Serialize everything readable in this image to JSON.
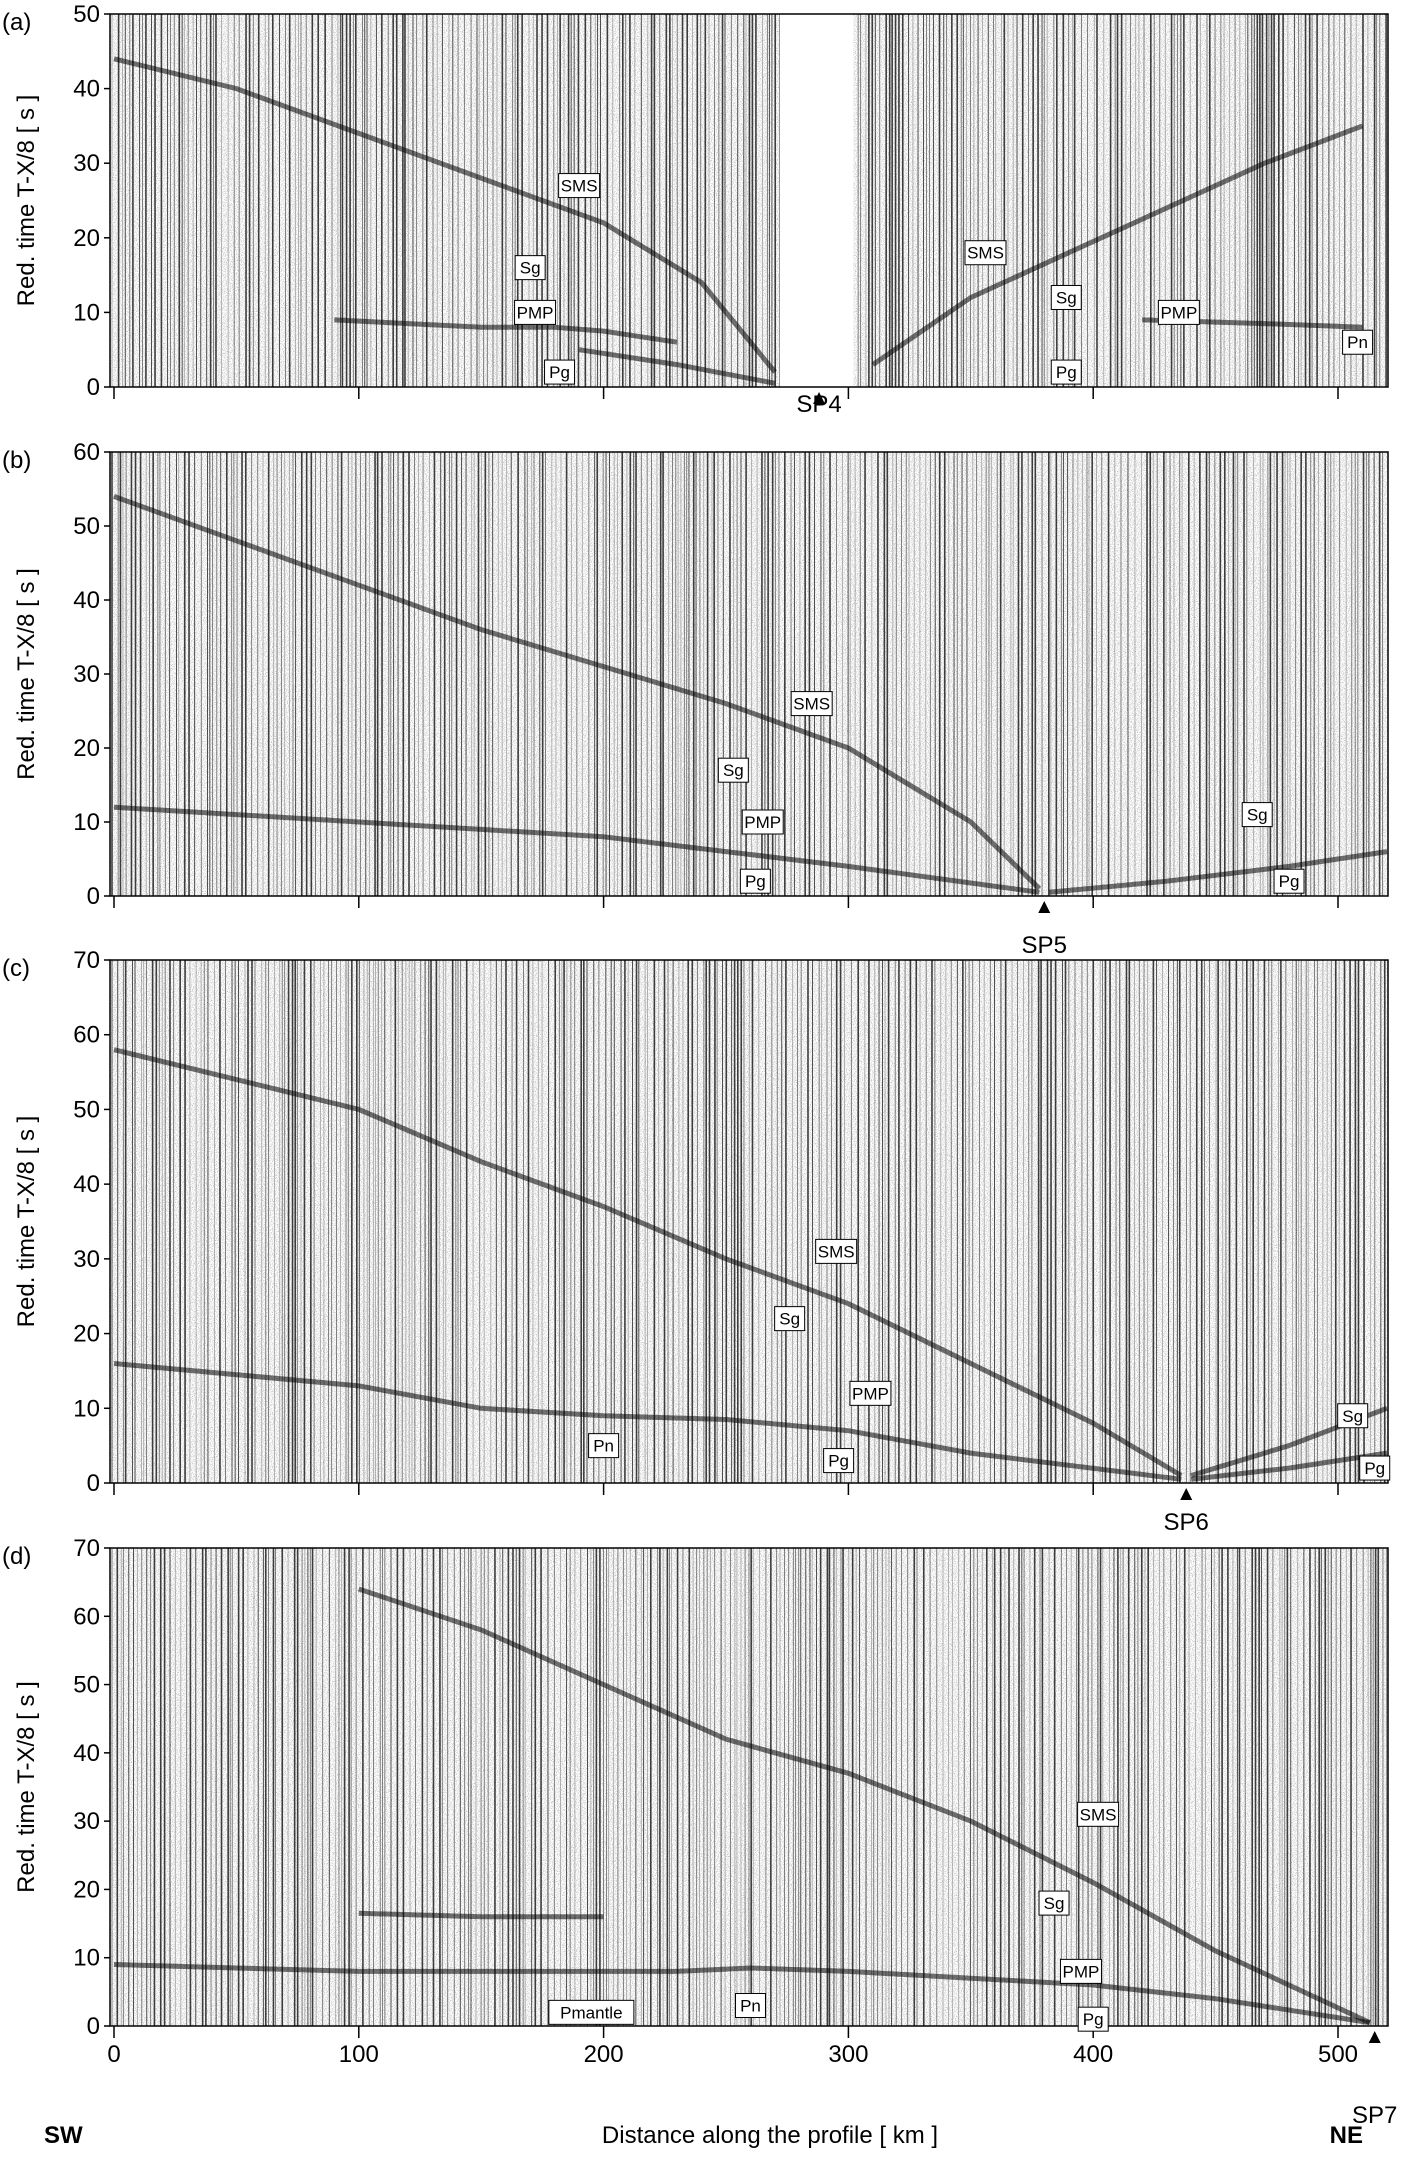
{
  "figure": {
    "xlabel": "Distance along the profile   [ km ]",
    "left_end": "SW",
    "right_end": "NE",
    "ylabel_prefix": "Red. time  T-X/8",
    "ylabel_unit": "[ s ]",
    "x_ticks": [
      0,
      100,
      200,
      300,
      400,
      500
    ],
    "xlim": [
      0,
      520
    ]
  },
  "chart_data": [
    {
      "type": "heatmap",
      "panel": "(a)",
      "xlim": [
        0,
        520
      ],
      "ylim": [
        0,
        50
      ],
      "y_ticks": [
        0,
        10,
        20,
        30,
        40,
        50
      ],
      "x_ticks": [
        0,
        100,
        200,
        300,
        400,
        500
      ],
      "shot": {
        "name": "SP4",
        "x": 288
      },
      "gap": [
        272,
        302
      ],
      "phases": [
        {
          "name": "SMS",
          "x": 190,
          "y": 27
        },
        {
          "name": "Sg",
          "x": 170,
          "y": 16
        },
        {
          "name": "PMP",
          "x": 172,
          "y": 10
        },
        {
          "name": "Pg",
          "x": 182,
          "y": 2
        },
        {
          "name": "SMS",
          "x": 356,
          "y": 18
        },
        {
          "name": "Sg",
          "x": 389,
          "y": 12
        },
        {
          "name": "Pg",
          "x": 389,
          "y": 2
        },
        {
          "name": "PMP",
          "x": 435,
          "y": 10
        },
        {
          "name": "Pn",
          "x": 508,
          "y": 6
        }
      ],
      "picks": [
        {
          "name": "PMP_left",
          "points": [
            [
              90,
              9
            ],
            [
              150,
              8
            ],
            [
              180,
              8
            ],
            [
              200,
              7.5
            ],
            [
              230,
              6
            ]
          ]
        },
        {
          "name": "SMS_left",
          "points": [
            [
              0,
              44
            ],
            [
              50,
              40
            ],
            [
              100,
              34
            ],
            [
              150,
              28
            ],
            [
              200,
              22
            ],
            [
              240,
              14
            ],
            [
              270,
              2
            ]
          ]
        },
        {
          "name": "Pg_left",
          "points": [
            [
              190,
              5
            ],
            [
              230,
              3
            ],
            [
              270,
              0.5
            ]
          ]
        },
        {
          "name": "SMS_right",
          "points": [
            [
              310,
              3
            ],
            [
              350,
              12
            ],
            [
              390,
              18
            ],
            [
              430,
              24
            ],
            [
              470,
              30
            ],
            [
              510,
              35
            ]
          ]
        },
        {
          "name": "PMP_right",
          "points": [
            [
              420,
              9
            ],
            [
              470,
              8.5
            ],
            [
              510,
              8
            ]
          ]
        }
      ]
    },
    {
      "type": "heatmap",
      "panel": "(b)",
      "xlim": [
        0,
        520
      ],
      "ylim": [
        0,
        60
      ],
      "y_ticks": [
        0,
        10,
        20,
        30,
        40,
        50,
        60
      ],
      "x_ticks": [
        0,
        100,
        200,
        300,
        400,
        500
      ],
      "shot": {
        "name": "SP5",
        "x": 380
      },
      "phases": [
        {
          "name": "SMS",
          "x": 285,
          "y": 26
        },
        {
          "name": "Sg",
          "x": 253,
          "y": 17
        },
        {
          "name": "PMP",
          "x": 265,
          "y": 10
        },
        {
          "name": "Pg",
          "x": 262,
          "y": 2
        },
        {
          "name": "Sg",
          "x": 467,
          "y": 11
        },
        {
          "name": "Pg",
          "x": 480,
          "y": 2
        }
      ],
      "picks": [
        {
          "name": "SMS",
          "points": [
            [
              0,
              54
            ],
            [
              50,
              48
            ],
            [
              100,
              42
            ],
            [
              150,
              36
            ],
            [
              200,
              31
            ],
            [
              250,
              26
            ],
            [
              300,
              20
            ],
            [
              350,
              10
            ],
            [
              378,
              1
            ]
          ]
        },
        {
          "name": "PMP",
          "points": [
            [
              0,
              12
            ],
            [
              50,
              11
            ],
            [
              100,
              10
            ],
            [
              150,
              9
            ],
            [
              200,
              8
            ],
            [
              250,
              6
            ],
            [
              300,
              4
            ],
            [
              378,
              0.5
            ]
          ]
        },
        {
          "name": "Pg_right",
          "points": [
            [
              382,
              0.5
            ],
            [
              430,
              2
            ],
            [
              480,
              4
            ],
            [
              520,
              6
            ]
          ]
        }
      ]
    },
    {
      "type": "heatmap",
      "panel": "(c)",
      "xlim": [
        0,
        520
      ],
      "ylim": [
        0,
        70
      ],
      "y_ticks": [
        0,
        10,
        20,
        30,
        40,
        50,
        60,
        70
      ],
      "x_ticks": [
        0,
        100,
        200,
        300,
        400,
        500
      ],
      "shot": {
        "name": "SP6",
        "x": 438
      },
      "phases": [
        {
          "name": "SMS",
          "x": 295,
          "y": 31
        },
        {
          "name": "Sg",
          "x": 276,
          "y": 22
        },
        {
          "name": "PMP",
          "x": 309,
          "y": 12
        },
        {
          "name": "Pn",
          "x": 200,
          "y": 5
        },
        {
          "name": "Pg",
          "x": 296,
          "y": 3
        },
        {
          "name": "Sg",
          "x": 506,
          "y": 9
        },
        {
          "name": "Pg",
          "x": 515,
          "y": 2
        }
      ],
      "picks": [
        {
          "name": "SMS",
          "points": [
            [
              0,
              58
            ],
            [
              100,
              50
            ],
            [
              150,
              43
            ],
            [
              200,
              37
            ],
            [
              250,
              30
            ],
            [
              300,
              24
            ],
            [
              350,
              16
            ],
            [
              400,
              8
            ],
            [
              436,
              1
            ]
          ]
        },
        {
          "name": "Pn",
          "points": [
            [
              0,
              16
            ],
            [
              100,
              13
            ],
            [
              150,
              10
            ],
            [
              200,
              9
            ],
            [
              250,
              8.5
            ],
            [
              300,
              7
            ],
            [
              350,
              4
            ],
            [
              436,
              0.5
            ]
          ]
        },
        {
          "name": "Sg_right",
          "points": [
            [
              440,
              1
            ],
            [
              480,
              5
            ],
            [
              520,
              10
            ]
          ]
        },
        {
          "name": "Pg_right",
          "points": [
            [
              440,
              0.5
            ],
            [
              480,
              2
            ],
            [
              520,
              4
            ]
          ]
        }
      ]
    },
    {
      "type": "heatmap",
      "panel": "(d)",
      "xlim": [
        0,
        520
      ],
      "ylim": [
        0,
        70
      ],
      "y_ticks": [
        0,
        10,
        20,
        30,
        40,
        50,
        60,
        70
      ],
      "x_ticks": [
        0,
        100,
        200,
        300,
        400,
        500
      ],
      "shot": {
        "name": "SP7",
        "x": 515
      },
      "phases": [
        {
          "name": "SMS",
          "x": 402,
          "y": 31
        },
        {
          "name": "Sg",
          "x": 384,
          "y": 18
        },
        {
          "name": "PMP",
          "x": 395,
          "y": 8
        },
        {
          "name": "Pmantle",
          "x": 195,
          "y": 2
        },
        {
          "name": "Pn",
          "x": 260,
          "y": 3
        },
        {
          "name": "Pg",
          "x": 400,
          "y": 1
        }
      ],
      "picks": [
        {
          "name": "SMS",
          "points": [
            [
              100,
              64
            ],
            [
              150,
              58
            ],
            [
              200,
              50
            ],
            [
              250,
              42
            ],
            [
              300,
              37
            ],
            [
              350,
              30
            ],
            [
              400,
              21
            ],
            [
              450,
              11
            ],
            [
              513,
              0.5
            ]
          ]
        },
        {
          "name": "P_upper",
          "points": [
            [
              0,
              9
            ],
            [
              100,
              8
            ],
            [
              150,
              8
            ],
            [
              200,
              8
            ],
            [
              230,
              8
            ],
            [
              260,
              8.5
            ],
            [
              300,
              8
            ],
            [
              350,
              7
            ],
            [
              400,
              6
            ],
            [
              450,
              4
            ],
            [
              513,
              0.5
            ]
          ]
        },
        {
          "name": "Pmantle",
          "points": [
            [
              100,
              16.5
            ],
            [
              150,
              16
            ],
            [
              200,
              16
            ]
          ]
        }
      ]
    }
  ]
}
